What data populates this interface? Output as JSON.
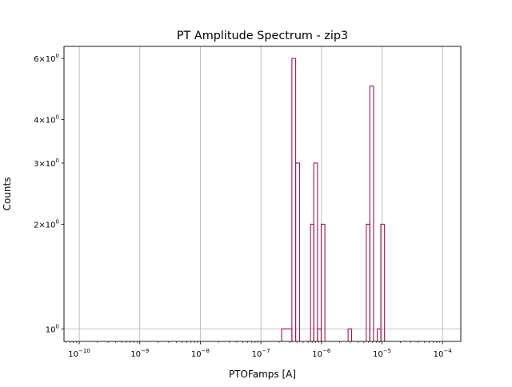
{
  "chart_data": {
    "type": "histogram",
    "title": "PT Amplitude Spectrum - zip3",
    "xlabel": "PTOFamps [A]",
    "ylabel": "Counts",
    "xscale": "log",
    "yscale": "log",
    "xlim": [
      5.6e-11,
      0.0002
    ],
    "ylim": [
      0.92,
      6.5
    ],
    "grid": true,
    "line_color": "#9b1b52",
    "x_ticks": [
      {
        "value": 1e-10,
        "base": "10",
        "exp": "−10"
      },
      {
        "value": 1e-09,
        "base": "10",
        "exp": "−9"
      },
      {
        "value": 1e-08,
        "base": "10",
        "exp": "−8"
      },
      {
        "value": 1e-07,
        "base": "10",
        "exp": "−7"
      },
      {
        "value": 1e-06,
        "base": "10",
        "exp": "−6"
      },
      {
        "value": 1e-05,
        "base": "10",
        "exp": "−5"
      },
      {
        "value": 0.0001,
        "base": "10",
        "exp": "−4"
      }
    ],
    "y_ticks": [
      {
        "value": 1,
        "mult": "",
        "base": "10",
        "exp": "0"
      },
      {
        "value": 2,
        "mult": "2×",
        "base": "10",
        "exp": "0"
      },
      {
        "value": 3,
        "mult": "3×",
        "base": "10",
        "exp": "0"
      },
      {
        "value": 4,
        "mult": "4×",
        "base": "10",
        "exp": "0"
      },
      {
        "value": 6,
        "mult": "6×",
        "base": "10",
        "exp": "0"
      }
    ],
    "bins": [
      {
        "x0": 2.2e-07,
        "x1": 3.25e-07,
        "count": 1
      },
      {
        "x0": 3.25e-07,
        "x1": 3.75e-07,
        "count": 6
      },
      {
        "x0": 3.75e-07,
        "x1": 4.35e-07,
        "count": 3
      },
      {
        "x0": 4.35e-07,
        "x1": 6.6e-07,
        "count": 0
      },
      {
        "x0": 6.6e-07,
        "x1": 7.45e-07,
        "count": 2
      },
      {
        "x0": 7.45e-07,
        "x1": 8.6e-07,
        "count": 3
      },
      {
        "x0": 8.6e-07,
        "x1": 9.9e-07,
        "count": 1
      },
      {
        "x0": 9.9e-07,
        "x1": 1.14e-06,
        "count": 2
      },
      {
        "x0": 1.14e-06,
        "x1": 2.75e-06,
        "count": 0
      },
      {
        "x0": 2.75e-06,
        "x1": 3.15e-06,
        "count": 1
      },
      {
        "x0": 3.15e-06,
        "x1": 5.5e-06,
        "count": 0
      },
      {
        "x0": 5.5e-06,
        "x1": 6.3e-06,
        "count": 2
      },
      {
        "x0": 6.3e-06,
        "x1": 7.25e-06,
        "count": 5
      },
      {
        "x0": 7.25e-06,
        "x1": 8.35e-06,
        "count": 0
      },
      {
        "x0": 8.35e-06,
        "x1": 9.55e-06,
        "count": 1
      },
      {
        "x0": 9.55e-06,
        "x1": 1.1e-05,
        "count": 2
      }
    ]
  }
}
